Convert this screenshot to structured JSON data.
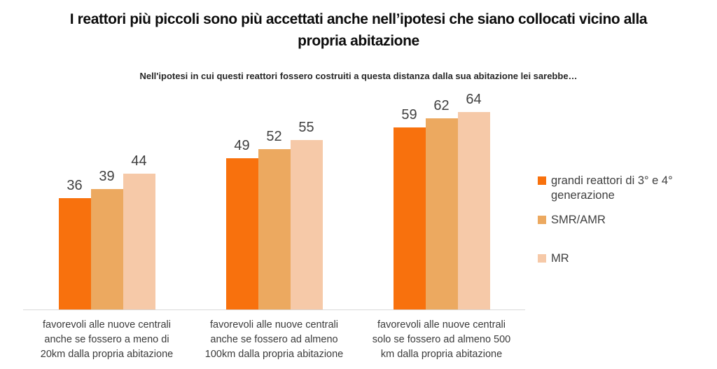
{
  "chart_data": {
    "type": "bar",
    "title": "I reattori più piccoli sono più accettati anche nell’ipotesi che siano collocati vicino alla\npropria abitazione",
    "subtitle": "Nell'ipotesi in cui questi reattori fossero costruiti a questa distanza dalla sua abitazione lei sarebbe…",
    "categories": [
      "favorevoli alle nuove centrali\nanche se fossero a meno di\n20km dalla propria abitazione",
      "favorevoli alle nuove centrali\nanche se fossero ad almeno\n100km dalla propria abitazione",
      "favorevoli alle nuove centrali\nsolo se fossero ad almeno 500\nkm dalla propria abitazione"
    ],
    "series": [
      {
        "name": "grandi reattori di 3° e 4° generazione",
        "color": "#F8710D",
        "values": [
          36,
          49,
          59
        ]
      },
      {
        "name": "SMR/AMR",
        "color": "#ECA960",
        "values": [
          39,
          52,
          62
        ]
      },
      {
        "name": "MR",
        "color": "#F6C9A8",
        "values": [
          44,
          55,
          64
        ]
      }
    ],
    "ylim": [
      0,
      71
    ],
    "grid": false,
    "legend_position": "right",
    "value_labels": true,
    "axis_line_color": "#D9D9D9",
    "value_label_color": "#404040"
  }
}
